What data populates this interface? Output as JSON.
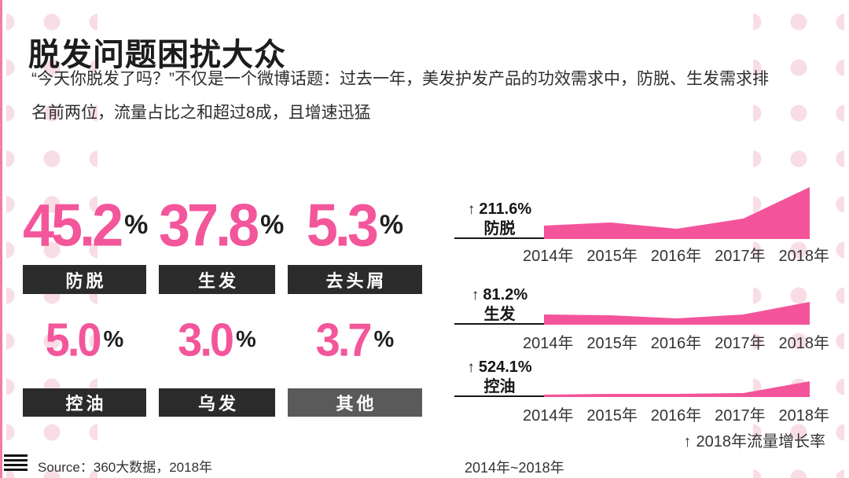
{
  "theme": {
    "pink": "#f3549a",
    "bar_dark": "#2b2b2b",
    "bar_gray": "#5a5a5a",
    "accent_line": "#f17ba9",
    "dot_color": "#f8dde4"
  },
  "icons": {
    "up_arrow": "↑",
    "hamburger": "menu-lines"
  },
  "header": {
    "title": "脱发问题困扰大众",
    "description_lines": [
      "“今天你脱发了吗？”不仅是一个微博话题：过去一年，美发护发产品的功效需求中，防脱、生发需求排",
      "名前两位，流量占比之和超过8成，且增速迅猛"
    ]
  },
  "stats": [
    {
      "value": "45.2",
      "unit": "%",
      "label": "防脱"
    },
    {
      "value": "37.8",
      "unit": "%",
      "label": "生发"
    },
    {
      "value": "5.3",
      "unit": "%",
      "label": "去头屑"
    },
    {
      "value": "5.0",
      "unit": "%",
      "label": "控油"
    },
    {
      "value": "3.0",
      "unit": "%",
      "label": "乌发"
    },
    {
      "value": "3.7",
      "unit": "%",
      "label": "其他"
    }
  ],
  "chart_data": [
    {
      "type": "area",
      "name": "防脱",
      "growth_label": "211.6%",
      "categories": [
        "2014年",
        "2015年",
        "2016年",
        "2017年",
        "2018年"
      ],
      "values": [
        17,
        21,
        13,
        26,
        66
      ],
      "ylim": [
        0,
        70
      ],
      "ylabel": "",
      "xlabel": "",
      "legend": "none",
      "grid": false
    },
    {
      "type": "area",
      "name": "生发",
      "growth_label": "81.2%",
      "categories": [
        "2014年",
        "2015年",
        "2016年",
        "2017年",
        "2018年"
      ],
      "values": [
        13,
        12,
        8,
        13,
        29
      ],
      "ylim": [
        0,
        32
      ],
      "ylabel": "",
      "xlabel": "",
      "legend": "none",
      "grid": false
    },
    {
      "type": "area",
      "name": "控油",
      "growth_label": "524.1%",
      "categories": [
        "2014年",
        "2015年",
        "2016年",
        "2017年",
        "2018年"
      ],
      "values": [
        3,
        4,
        4,
        5,
        20
      ],
      "ylim": [
        0,
        20
      ],
      "ylabel": "",
      "xlabel": "",
      "legend": "none",
      "grid": false
    }
  ],
  "chart_caption": "2018年流量增长率",
  "footer": {
    "source": "Source：360大数据，2018年",
    "period": "2014年~2018年"
  }
}
